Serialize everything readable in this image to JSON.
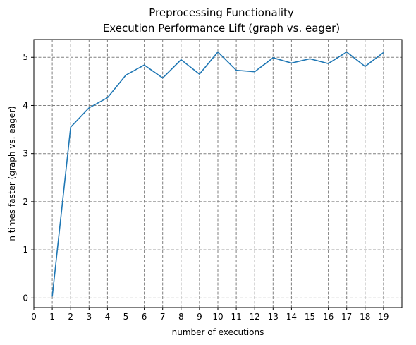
{
  "chart_data": {
    "type": "line",
    "title": "Preprocessing Functionality",
    "subtitle": "Execution Performance Lift (graph vs. eager)",
    "xlabel": "number of executions",
    "ylabel": "n times faster (graph vs. eager)",
    "xlim": [
      0,
      20
    ],
    "ylim": [
      -0.2,
      5.37
    ],
    "xticks": [
      "0",
      "1",
      "2",
      "3",
      "4",
      "5",
      "6",
      "7",
      "8",
      "9",
      "10",
      "11",
      "12",
      "13",
      "14",
      "15",
      "16",
      "17",
      "18",
      "19"
    ],
    "yticks": [
      "0",
      "1",
      "2",
      "3",
      "4",
      "5"
    ],
    "grid": true,
    "series": [
      {
        "color": "#1f77b4",
        "x": [
          1,
          2,
          3,
          4,
          5,
          6,
          7,
          8,
          9,
          10,
          11,
          12,
          13,
          14,
          15,
          16,
          17,
          18,
          19
        ],
        "y": [
          0.03,
          3.55,
          3.95,
          4.16,
          4.63,
          4.84,
          4.57,
          4.95,
          4.65,
          5.11,
          4.73,
          4.7,
          4.99,
          4.88,
          4.97,
          4.87,
          5.11,
          4.81,
          5.1
        ]
      }
    ]
  }
}
